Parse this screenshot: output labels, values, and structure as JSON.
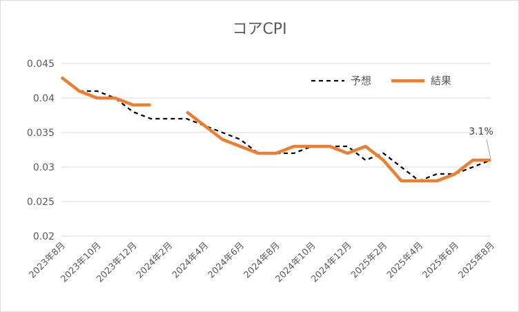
{
  "chart_data": {
    "type": "line",
    "title": "コアCPI",
    "xlabel": "",
    "ylabel": "",
    "ylim": [
      0.02,
      0.045
    ],
    "yticks": [
      "0.045",
      "0.04",
      "0.035",
      "0.03",
      "0.025",
      "0.02"
    ],
    "ytick_values": [
      0.045,
      0.04,
      0.035,
      0.03,
      0.025,
      0.02
    ],
    "categories": [
      "2023年8月",
      "2023年9月",
      "2023年10月",
      "2023年11月",
      "2023年12月",
      "2024年1月",
      "2024年2月",
      "2024年3月",
      "2024年4月",
      "2024年5月",
      "2024年6月",
      "2024年7月",
      "2024年8月",
      "2024年9月",
      "2024年10月",
      "2024年11月",
      "2024年12月",
      "2025年1月",
      "2025年2月",
      "2025年3月",
      "2025年4月",
      "2025年5月",
      "2025年6月",
      "2025年7月",
      "2025年8月"
    ],
    "xtick_labels": [
      "2023年8月",
      "2023年10月",
      "2023年12月",
      "2024年2月",
      "2024年4月",
      "2024年6月",
      "2024年8月",
      "2024年10月",
      "2024年12月",
      "2025年2月",
      "2025年4月",
      "2025年6月",
      "2025年8月"
    ],
    "grid": true,
    "legend_position": "top-right",
    "series": [
      {
        "name": "予想",
        "style": "dashed",
        "color": "#000000",
        "values": [
          null,
          0.041,
          0.041,
          0.04,
          0.038,
          0.037,
          0.037,
          0.037,
          0.036,
          0.035,
          0.034,
          0.032,
          0.032,
          0.032,
          0.033,
          0.033,
          0.033,
          0.031,
          0.032,
          0.03,
          0.028,
          0.029,
          0.029,
          0.03,
          0.031
        ]
      },
      {
        "name": "結果",
        "style": "solid",
        "color": "#ED7D31",
        "values": [
          0.043,
          0.041,
          0.04,
          0.04,
          0.039,
          0.039,
          null,
          0.038,
          0.036,
          0.034,
          0.033,
          0.032,
          0.032,
          0.033,
          0.033,
          0.033,
          0.032,
          0.033,
          0.031,
          0.028,
          0.028,
          0.028,
          0.029,
          0.031,
          0.031
        ]
      }
    ],
    "annotations": [
      {
        "text": "3.1%",
        "category": "2025年8月",
        "value": 0.031
      }
    ]
  }
}
